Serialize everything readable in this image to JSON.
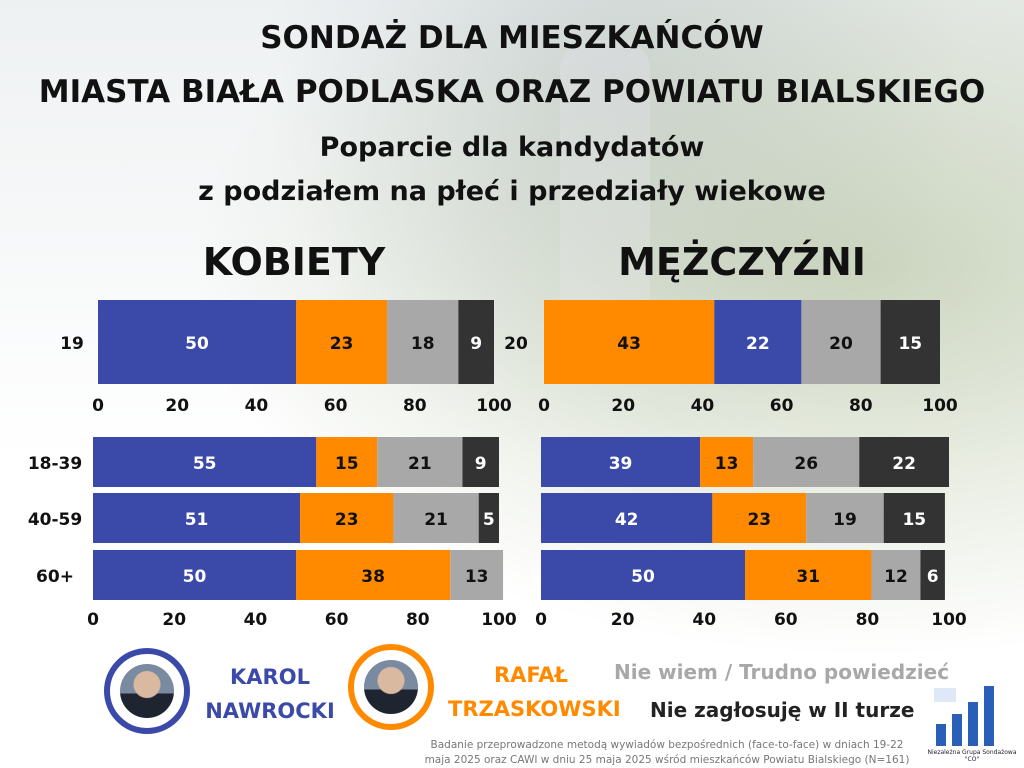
{
  "title_line1": "SONDAŻ DLA MIESZKAŃCÓW",
  "title_line2": "MIASTA BIAŁA PODLASKA ORAZ POWIATU BIALSKIEGO",
  "subtitle_line1": "Poparcie dla kandydatów",
  "subtitle_line2": "z podziałem na płeć i przedziały wiekowe",
  "colors": {
    "nawrocki": "#3b4aa8",
    "trzaskowski": "#ff8a00",
    "nie_wiem": "#a8a8a8",
    "nie_zaglosuje": "#333333"
  },
  "legend": {
    "nawrocki_line1": "KAROL",
    "nawrocki_line2": "NAWROCKI",
    "trzaskowski_line1": "RAFAŁ",
    "trzaskowski_line2": "TRZASKOWSKI",
    "nie_wiem": "Nie wiem / Trudno powiedzieć",
    "nie_zaglosuje": "Nie zagłosuję w II turze"
  },
  "footnote_line1": "Badanie przeprowadzone metodą wywiadów bezpośrednich (face-to-face) w dniach 19-22",
  "footnote_line2": "maja 2025 oraz CAWI w dniu 25 maja 2025 wśród mieszkańców Powiatu Bialskiego (N=161)",
  "logo_text": "Niezależna Grupa Sondażowa \"CO\"",
  "chart_data": [
    {
      "type": "bar",
      "orientation": "horizontal",
      "stacked": true,
      "title": "KOBIETY",
      "categories": [
        "19"
      ],
      "series": [
        {
          "color_key": "nawrocki",
          "values": [
            50
          ]
        },
        {
          "color_key": "trzaskowski",
          "values": [
            23
          ]
        },
        {
          "color_key": "nie_wiem",
          "values": [
            18
          ]
        },
        {
          "color_key": "nie_zaglosuje",
          "values": [
            9
          ]
        }
      ],
      "xlim": [
        0,
        100
      ],
      "xticks": [
        0,
        20,
        40,
        60,
        80,
        100
      ]
    },
    {
      "type": "bar",
      "orientation": "horizontal",
      "stacked": true,
      "title": "MĘŻCZYŹNI",
      "categories": [
        "20"
      ],
      "series": [
        {
          "color_key": "trzaskowski",
          "values": [
            43
          ]
        },
        {
          "color_key": "nawrocki",
          "values": [
            22
          ]
        },
        {
          "color_key": "nie_wiem",
          "values": [
            20
          ]
        },
        {
          "color_key": "nie_zaglosuje",
          "values": [
            15
          ]
        }
      ],
      "xlim": [
        0,
        100
      ],
      "xticks": [
        0,
        20,
        40,
        60,
        80,
        100
      ]
    },
    {
      "type": "bar",
      "orientation": "horizontal",
      "stacked": true,
      "categories": [
        "18-39",
        "40-59",
        "60+"
      ],
      "series": [
        {
          "color_key": "nawrocki",
          "values": [
            55,
            51,
            50
          ]
        },
        {
          "color_key": "trzaskowski",
          "values": [
            15,
            23,
            38
          ]
        },
        {
          "color_key": "nie_wiem",
          "values": [
            21,
            21,
            13
          ]
        },
        {
          "color_key": "nie_zaglosuje",
          "values": [
            9,
            5,
            0
          ]
        }
      ],
      "xlim": [
        0,
        100
      ],
      "xticks": [
        0,
        20,
        40,
        60,
        80,
        100
      ]
    },
    {
      "type": "bar",
      "orientation": "horizontal",
      "stacked": true,
      "categories": [
        "18-39",
        "40-59",
        "60+"
      ],
      "series": [
        {
          "color_key": "nawrocki",
          "values": [
            39,
            42,
            50
          ]
        },
        {
          "color_key": "trzaskowski",
          "values": [
            13,
            23,
            31
          ]
        },
        {
          "color_key": "nie_wiem",
          "values": [
            26,
            19,
            12
          ]
        },
        {
          "color_key": "nie_zaglosuje",
          "values": [
            22,
            15,
            6
          ]
        }
      ],
      "xlim": [
        0,
        100
      ],
      "xticks": [
        0,
        20,
        40,
        60,
        80,
        100
      ]
    }
  ]
}
